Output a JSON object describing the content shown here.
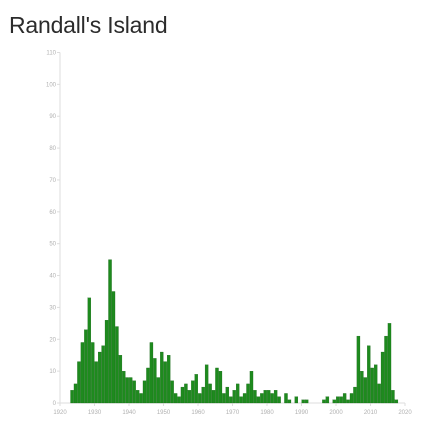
{
  "chart_data": {
    "type": "bar",
    "title": "Randall's Island",
    "xlabel": "",
    "ylabel": "",
    "x_ticks": [
      "1920",
      "1930",
      "1940",
      "1950",
      "1960",
      "1970",
      "1980",
      "1990",
      "2000",
      "2010",
      "2020"
    ],
    "y_ticks": [
      "0",
      "10",
      "20",
      "30",
      "40",
      "50",
      "60",
      "70",
      "80",
      "90",
      "100",
      "110"
    ],
    "xlim": [
      1920,
      2020
    ],
    "ylim": [
      0,
      110
    ],
    "grid": false,
    "legend": "none",
    "bar_color": "#1e8a1e",
    "bar_stroke": "#0f5a0f",
    "axis_color": "#dddddd",
    "series": [
      {
        "x": [
          1923,
          1924,
          1925,
          1926,
          1927,
          1928,
          1929,
          1930,
          1931,
          1932,
          1933,
          1934,
          1935,
          1936,
          1937,
          1938,
          1939,
          1940,
          1941,
          1942,
          1943,
          1944,
          1945,
          1946,
          1947,
          1948,
          1949,
          1950,
          1951,
          1952,
          1953,
          1954,
          1955,
          1956,
          1957,
          1958,
          1959,
          1960,
          1961,
          1962,
          1963,
          1964,
          1965,
          1966,
          1967,
          1968,
          1969,
          1970,
          1971,
          1972,
          1973,
          1974,
          1975,
          1976,
          1977,
          1978,
          1979,
          1980,
          1981,
          1982,
          1983,
          1985,
          1986,
          1988,
          1990,
          1991,
          1996,
          1997,
          1999,
          2000,
          2001,
          2002,
          2003,
          2004,
          2005,
          2006,
          2007,
          2008,
          2009,
          2010,
          2011,
          2012,
          2013,
          2014,
          2015,
          2016,
          2017
        ],
        "values": [
          4,
          6,
          13,
          19,
          23,
          33,
          19,
          13,
          16,
          18,
          26,
          45,
          35,
          24,
          15,
          10,
          8,
          8,
          7,
          4,
          3,
          7,
          11,
          19,
          14,
          8,
          16,
          13,
          15,
          7,
          3,
          2,
          5,
          6,
          4,
          7,
          9,
          3,
          5,
          12,
          6,
          4,
          11,
          10,
          3,
          5,
          2,
          4,
          6,
          2,
          3,
          6,
          10,
          4,
          2,
          3,
          4,
          4,
          3,
          4,
          2,
          3,
          1,
          2,
          1,
          1,
          1,
          2,
          1,
          2,
          2,
          3,
          1,
          3,
          5,
          21,
          10,
          8,
          18,
          11,
          12,
          6,
          16,
          21,
          25,
          4,
          1
        ]
      }
    ]
  }
}
